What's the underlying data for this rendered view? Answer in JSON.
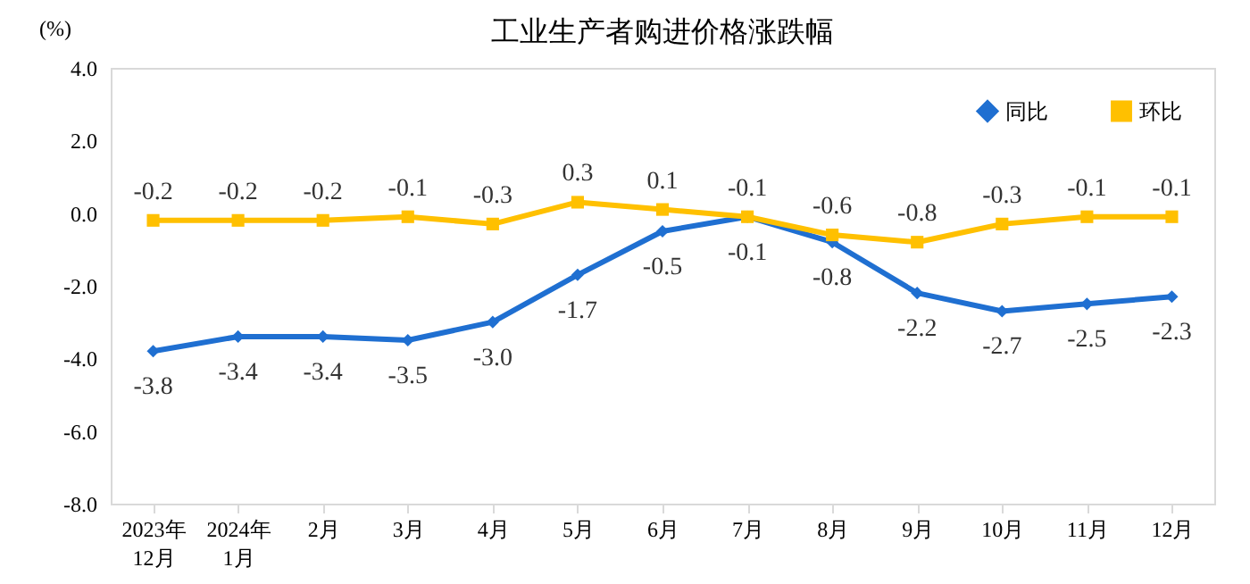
{
  "chart_data": {
    "type": "line",
    "title": "工业生产者购进价格涨跌幅",
    "ylabel": "(%)",
    "categories": [
      "2023年\n12月",
      "2024年\n1月",
      "2月",
      "3月",
      "4月",
      "5月",
      "6月",
      "7月",
      "8月",
      "9月",
      "10月",
      "11月",
      "12月"
    ],
    "series": [
      {
        "name": "同比",
        "color": "#1f6fd1",
        "marker": "diamond",
        "values": [
          -3.8,
          -3.4,
          -3.4,
          -3.5,
          -3.0,
          -1.7,
          -0.5,
          -0.1,
          -0.8,
          -2.2,
          -2.7,
          -2.5,
          -2.3
        ],
        "value_labels": [
          "-3.8",
          "-3.4",
          "-3.4",
          "-3.5",
          "-3.0",
          "-1.7",
          "-0.5",
          "-0.1",
          "-0.8",
          "-2.2",
          "-2.7",
          "-2.5",
          "-2.3"
        ]
      },
      {
        "name": "环比",
        "color": "#ffc000",
        "marker": "square",
        "values": [
          -0.2,
          -0.2,
          -0.2,
          -0.1,
          -0.3,
          0.3,
          0.1,
          -0.1,
          -0.6,
          -0.8,
          -0.3,
          -0.1,
          -0.1
        ],
        "value_labels": [
          "-0.2",
          "-0.2",
          "-0.2",
          "-0.1",
          "-0.3",
          "0.3",
          "0.1",
          "-0.1",
          "-0.6",
          "-0.8",
          "-0.3",
          "-0.1",
          "-0.1"
        ]
      }
    ],
    "ylim": [
      -8,
      4
    ],
    "yticks": [
      {
        "value": -8,
        "label": "-8.0"
      },
      {
        "value": -6,
        "label": "-6.0"
      },
      {
        "value": -4,
        "label": "-4.0"
      },
      {
        "value": -2,
        "label": "-2.0"
      },
      {
        "value": 0,
        "label": "0.0"
      },
      {
        "value": 2,
        "label": "2.0"
      },
      {
        "value": 4,
        "label": "4.0"
      }
    ],
    "legend": "top right",
    "grid": false,
    "line_style": "solid"
  }
}
